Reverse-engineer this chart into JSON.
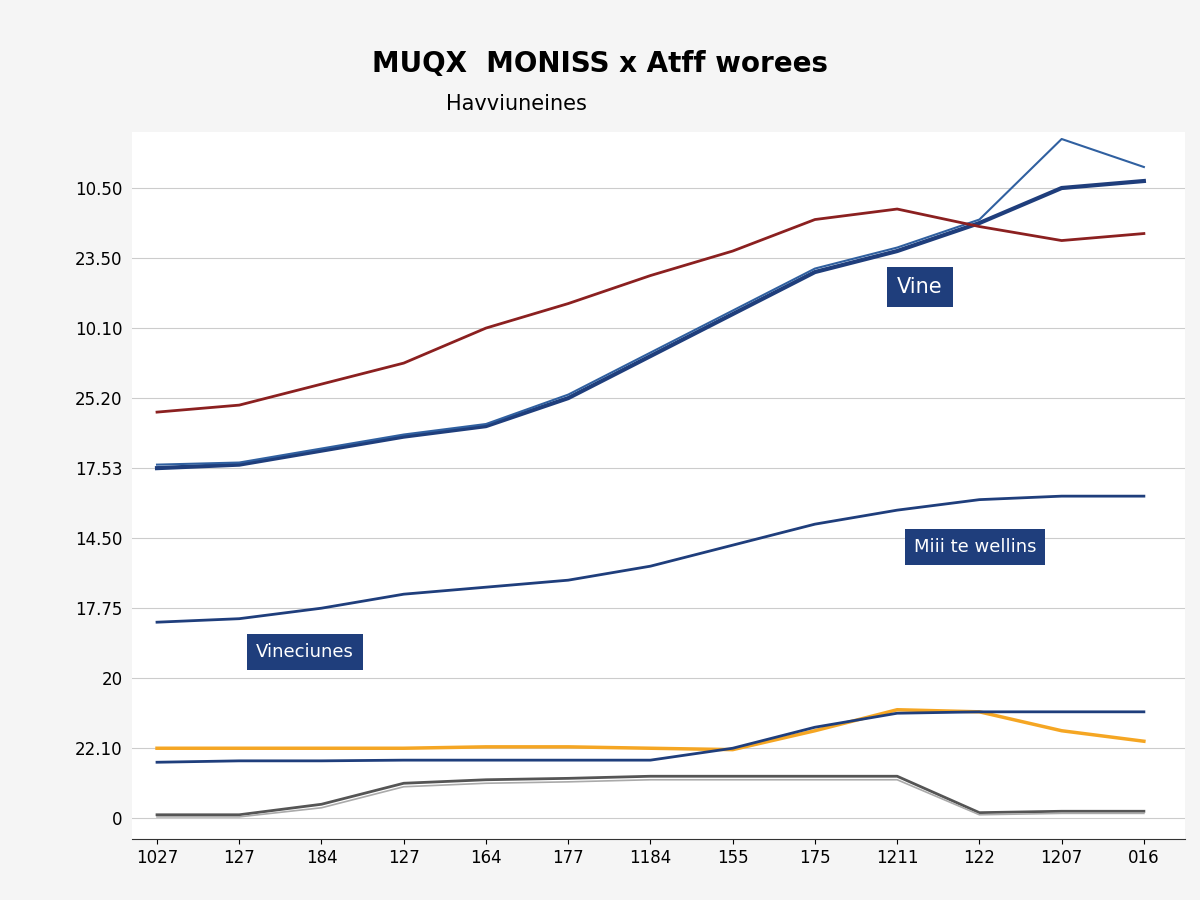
{
  "title": "MUQX  MONISS x Atff worees",
  "subtitle": "Havviuneines",
  "x_labels": [
    "1027",
    "127",
    "184",
    "127",
    "164",
    "177",
    "1184",
    "155",
    "175",
    "1211",
    "122",
    "1207",
    "016"
  ],
  "y_tick_positions": [
    0,
    1,
    2,
    3,
    4,
    5,
    6,
    7,
    8,
    9
  ],
  "y_tick_labels": [
    "0",
    "22.10",
    "20",
    "17.75",
    "14.50",
    "17.53",
    "25.20",
    "10.10",
    "23.50",
    "10.50"
  ],
  "lines": {
    "navy_main": {
      "color": "#1f3e7c",
      "linewidth": 3.0,
      "values": [
        5.0,
        5.05,
        5.25,
        5.45,
        5.6,
        6.0,
        6.6,
        7.2,
        7.8,
        8.1,
        8.5,
        9.0,
        9.1
      ],
      "label": "Vine"
    },
    "navy_thin_upper": {
      "color": "#3060a0",
      "linewidth": 1.5,
      "values": [
        5.05,
        5.08,
        5.28,
        5.48,
        5.63,
        6.05,
        6.65,
        7.25,
        7.85,
        8.15,
        8.55,
        9.7,
        9.3
      ],
      "label": ""
    },
    "navy_lower": {
      "color": "#1f3e7c",
      "linewidth": 2.0,
      "values": [
        2.8,
        2.85,
        3.0,
        3.2,
        3.3,
        3.4,
        3.6,
        3.9,
        4.2,
        4.4,
        4.55,
        4.6,
        4.6
      ],
      "label": ""
    },
    "brownred": {
      "color": "#8b2020",
      "linewidth": 2.0,
      "values": [
        5.8,
        5.9,
        6.2,
        6.5,
        7.0,
        7.35,
        7.75,
        8.1,
        8.55,
        8.7,
        8.45,
        8.25,
        8.35
      ],
      "label": ""
    },
    "orange": {
      "color": "#f5a623",
      "linewidth": 2.5,
      "values": [
        1.0,
        1.0,
        1.0,
        1.0,
        1.02,
        1.02,
        1.0,
        0.98,
        1.25,
        1.55,
        1.52,
        1.25,
        1.1
      ],
      "label": ""
    },
    "navy_solar": {
      "color": "#1f3e7c",
      "linewidth": 2.0,
      "values": [
        0.8,
        0.82,
        0.82,
        0.83,
        0.83,
        0.83,
        0.83,
        1.0,
        1.3,
        1.5,
        1.52,
        1.52,
        1.52
      ]
    },
    "gray_dark": {
      "color": "#555555",
      "linewidth": 2.0,
      "values": [
        0.05,
        0.05,
        0.2,
        0.5,
        0.55,
        0.57,
        0.6,
        0.6,
        0.6,
        0.6,
        0.08,
        0.1,
        0.1
      ],
      "label": ""
    },
    "gray_light": {
      "color": "#aaaaaa",
      "linewidth": 1.2,
      "values": [
        0.02,
        0.02,
        0.15,
        0.45,
        0.5,
        0.52,
        0.55,
        0.55,
        0.55,
        0.55,
        0.05,
        0.07,
        0.07
      ],
      "label": ""
    }
  },
  "background_color": "#f5f5f5",
  "plot_bg_color": "#ffffff",
  "title_fontsize": 20,
  "subtitle_fontsize": 15,
  "ylim": [
    -0.3,
    9.8
  ],
  "xlim": [
    -0.3,
    12.5
  ]
}
